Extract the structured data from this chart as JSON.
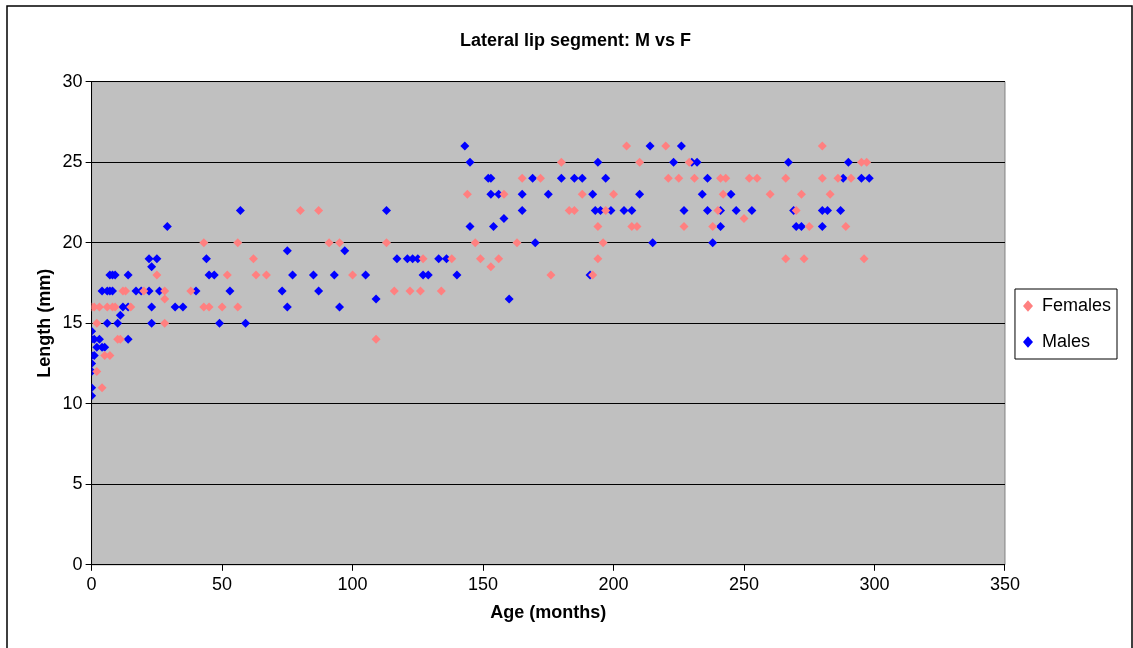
{
  "chart_data": {
    "type": "scatter",
    "title": "Lateral lip segment: M vs F",
    "xlabel": "Age (months)",
    "ylabel": "Length (mm)",
    "xlim": [
      0,
      350
    ],
    "xticks": [
      0,
      50,
      100,
      150,
      200,
      250,
      300,
      350
    ],
    "ylim": [
      0,
      30
    ],
    "yticks": [
      0,
      5,
      10,
      15,
      20,
      25,
      30
    ],
    "grid": "y",
    "legend": "right",
    "marker": "diamond",
    "series": [
      {
        "name": "Females",
        "color": "#ff8080",
        "x": [
          0,
          1,
          2,
          2,
          3,
          4,
          5,
          6,
          7,
          8,
          9,
          10,
          11,
          12,
          13,
          15,
          20,
          25,
          28,
          28,
          28,
          38,
          43,
          43,
          45,
          50,
          52,
          56,
          56,
          62,
          63,
          67,
          80,
          87,
          91,
          95,
          100,
          109,
          113,
          116,
          122,
          126,
          127,
          134,
          138,
          144,
          147,
          149,
          153,
          156,
          158,
          163,
          165,
          172,
          176,
          180,
          183,
          185,
          188,
          192,
          194,
          194,
          196,
          197,
          200,
          205,
          207,
          209,
          210,
          220,
          221,
          225,
          227,
          229,
          231,
          238,
          240,
          241,
          242,
          243,
          250,
          252,
          255,
          260,
          266,
          266,
          270,
          272,
          273,
          275,
          280,
          280,
          283,
          286,
          289,
          291,
          295,
          296,
          297
        ],
        "values": [
          16,
          16,
          15,
          12,
          16,
          11,
          13,
          16,
          13,
          16,
          16,
          14,
          14,
          17,
          17,
          16,
          17,
          18,
          17,
          16.5,
          15,
          17,
          20,
          16,
          16,
          16,
          18,
          20,
          16,
          19,
          18,
          18,
          22,
          22,
          20,
          20,
          18,
          14,
          20,
          17,
          17,
          17,
          19,
          17,
          19,
          23,
          20,
          19,
          18.5,
          19,
          23,
          20,
          24,
          24,
          18,
          25,
          22,
          22,
          23,
          18,
          19,
          21,
          20,
          22,
          23,
          26,
          21,
          21,
          25,
          26,
          24,
          24,
          21,
          25,
          24,
          21,
          22,
          24,
          23,
          24,
          21.5,
          24,
          24,
          23,
          19,
          24,
          22,
          23,
          19,
          21,
          26,
          24,
          23,
          24,
          21,
          24,
          25,
          19,
          25
        ]
      },
      {
        "name": "Males",
        "color": "#0000ff",
        "x": [
          0,
          0,
          0,
          0,
          0,
          0,
          0,
          1,
          1,
          2,
          3,
          4,
          4,
          5,
          6,
          6,
          7,
          7,
          8,
          8,
          9,
          10,
          11,
          12,
          14,
          14,
          14,
          17,
          19,
          22,
          22,
          23,
          23,
          23,
          25,
          26,
          29,
          32,
          35,
          40,
          44,
          45,
          47,
          49,
          53,
          57,
          59,
          73,
          75,
          75,
          77,
          85,
          87,
          93,
          95,
          97,
          105,
          109,
          113,
          117,
          121,
          123,
          125,
          127,
          129,
          133,
          136,
          140,
          143,
          145,
          145,
          152,
          153,
          154,
          153,
          156,
          158,
          160,
          165,
          165,
          169,
          170,
          175,
          180,
          185,
          188,
          191,
          192,
          193,
          194,
          195,
          197,
          199,
          204,
          207,
          210,
          214,
          215,
          223,
          226,
          227,
          230,
          232,
          234,
          236,
          236,
          238,
          241,
          241,
          245,
          247,
          253,
          267,
          269,
          270,
          272,
          280,
          280,
          282,
          287,
          288,
          290,
          295,
          298
        ],
        "values": [
          10.5,
          11,
          12,
          12.5,
          13,
          14,
          14.5,
          13,
          14,
          13.5,
          14,
          13.5,
          17,
          13.5,
          15,
          17,
          17,
          18,
          17,
          18,
          18,
          15,
          15.5,
          16,
          18,
          14,
          16,
          17,
          17,
          17,
          19,
          18.5,
          16,
          15,
          19,
          17,
          21,
          16,
          16,
          17,
          19,
          18,
          18,
          15,
          17,
          22,
          15,
          17,
          19.5,
          16,
          18,
          18,
          17,
          18,
          16,
          19.5,
          18,
          16.5,
          22,
          19,
          19,
          19,
          19,
          18,
          18,
          19,
          19,
          18,
          26,
          25,
          21,
          24,
          24,
          21,
          23,
          23,
          21.5,
          16.5,
          23,
          22,
          24,
          20,
          23,
          24,
          24,
          24,
          18,
          23,
          22,
          25,
          22,
          24,
          22,
          22,
          22,
          23,
          26,
          20,
          25,
          26,
          22,
          25,
          25,
          23,
          24,
          22,
          20,
          22,
          21,
          23,
          22,
          22,
          25,
          22,
          21,
          21,
          21,
          22,
          22,
          22,
          24,
          25,
          24,
          24
        ]
      }
    ]
  }
}
